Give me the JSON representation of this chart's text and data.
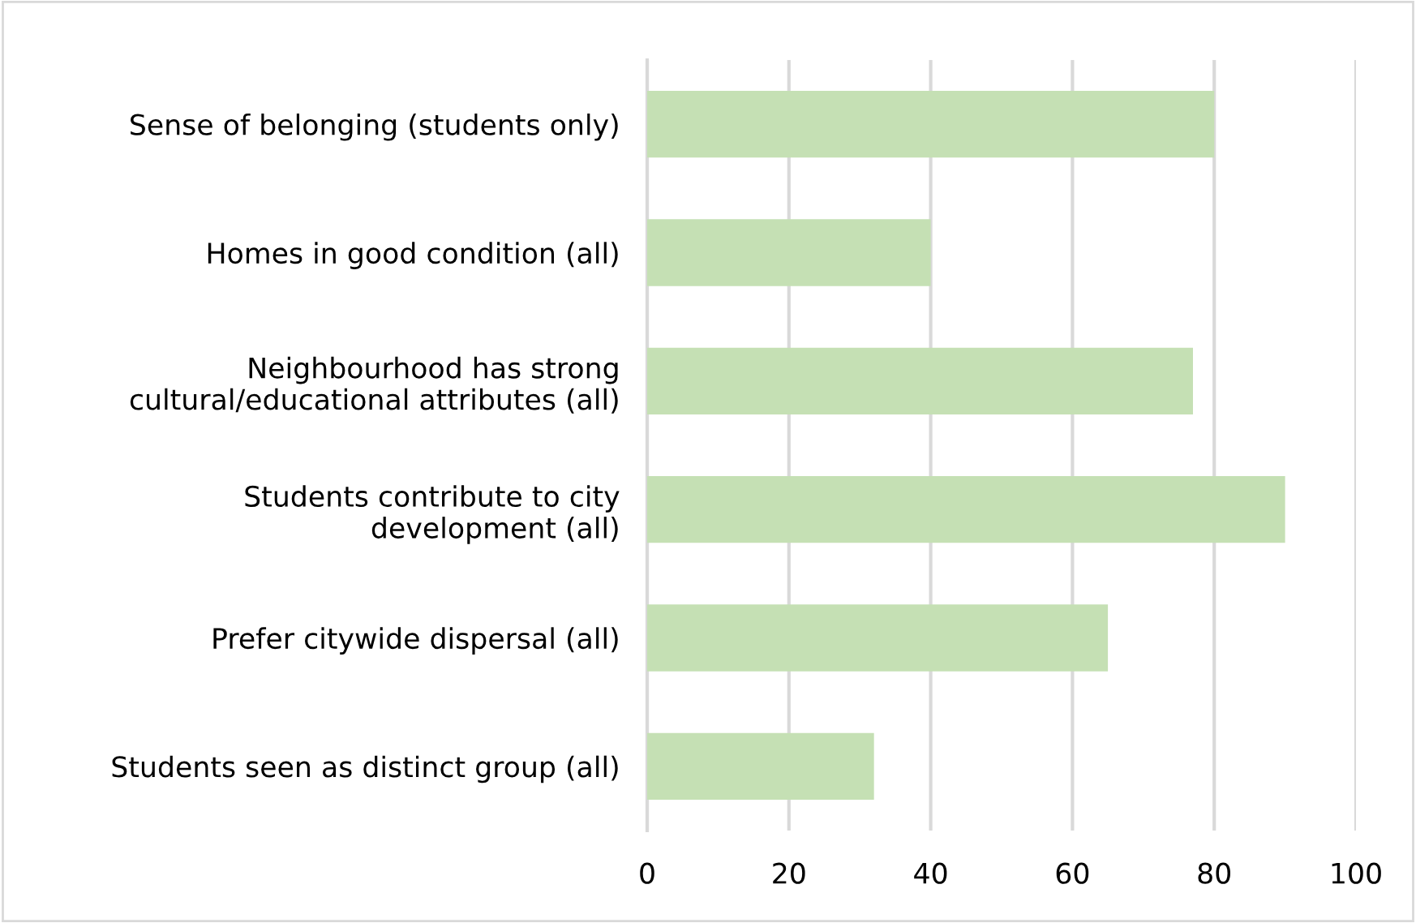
{
  "chart_data": {
    "type": "bar",
    "orientation": "horizontal",
    "categories": [
      "Sense of belonging (students only)",
      "Homes in good condition (all)",
      "Neighbourhood has strong\ncultural/educational attributes (all)",
      "Students contribute to city\ndevelopment (all)",
      "Prefer citywide dispersal (all)",
      "Students seen as distinct group (all)"
    ],
    "values": [
      80,
      40,
      77,
      90,
      65,
      32
    ],
    "color": "#c5e0b4",
    "xlim": [
      0,
      100
    ],
    "xticks": [
      0,
      20,
      40,
      60,
      80,
      100
    ],
    "grid": "x"
  }
}
